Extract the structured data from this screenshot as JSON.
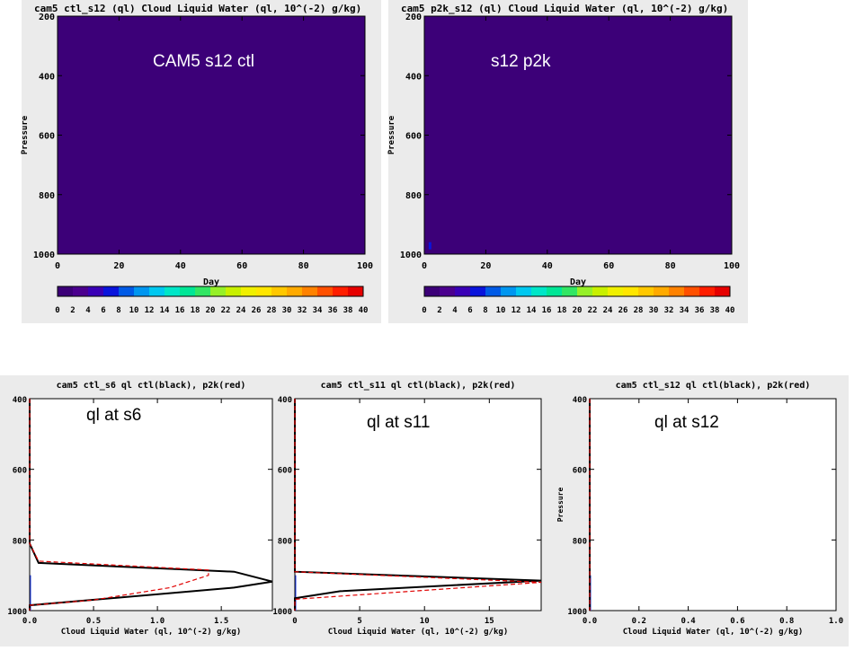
{
  "chart_data": [
    {
      "type": "heatmap",
      "title": "cam5 ctl_s12  (ql)  Cloud Liquid Water (ql, 10^(-2) g/kg)",
      "overlay_label": "CAM5 s12 ctl",
      "xlabel": "Day",
      "ylabel": "Pressure",
      "xlim": [
        0,
        100
      ],
      "ylim": [
        1000,
        200
      ],
      "x_ticks": [
        "0",
        "20",
        "40",
        "60",
        "80",
        "100"
      ],
      "y_ticks": [
        "200",
        "400",
        "600",
        "800",
        "1000"
      ],
      "field_value": 0,
      "hotspots": [],
      "colorbar": {
        "ticks": [
          "0",
          "2",
          "4",
          "6",
          "8",
          "10",
          "12",
          "14",
          "16",
          "18",
          "20",
          "22",
          "24",
          "26",
          "28",
          "30",
          "32",
          "34",
          "36",
          "38",
          "40"
        ],
        "colors": [
          "#3c0078",
          "#4b008e",
          "#3a00b6",
          "#0a14dc",
          "#005ae6",
          "#0096f0",
          "#00c8f0",
          "#00e6c8",
          "#00e696",
          "#32e664",
          "#96f028",
          "#c8f000",
          "#f0f000",
          "#ffe600",
          "#ffc800",
          "#ffaa00",
          "#ff8200",
          "#ff5000",
          "#ff1e00",
          "#e60000"
        ]
      }
    },
    {
      "type": "heatmap",
      "title": "cam5 p2k_s12  (ql)  Cloud Liquid Water (ql, 10^(-2) g/kg)",
      "overlay_label": "s12 p2k",
      "xlabel": "Day",
      "ylabel": "Pressure",
      "xlim": [
        0,
        100
      ],
      "ylim": [
        1000,
        200
      ],
      "x_ticks": [
        "0",
        "20",
        "40",
        "60",
        "80",
        "100"
      ],
      "y_ticks": [
        "200",
        "400",
        "600",
        "800",
        "1000"
      ],
      "field_value": 0,
      "hotspots": [
        {
          "day": 2,
          "pressure": 990,
          "value": 6
        }
      ],
      "colorbar": {
        "ticks": [
          "0",
          "2",
          "4",
          "6",
          "8",
          "10",
          "12",
          "14",
          "16",
          "18",
          "20",
          "22",
          "24",
          "26",
          "28",
          "30",
          "32",
          "34",
          "36",
          "38",
          "40"
        ],
        "colors": [
          "#3c0078",
          "#4b008e",
          "#3a00b6",
          "#0a14dc",
          "#005ae6",
          "#0096f0",
          "#00c8f0",
          "#00e6c8",
          "#00e696",
          "#32e664",
          "#96f028",
          "#c8f000",
          "#f0f000",
          "#ffe600",
          "#ffc800",
          "#ffaa00",
          "#ff8200",
          "#ff5000",
          "#ff1e00",
          "#e60000"
        ]
      }
    },
    {
      "type": "line",
      "title": "cam5 ctl_s6 ql ctl(black), p2k(red)",
      "overlay_label": "ql at s6",
      "xlabel": "Cloud Liquid Water (ql, 10^(-2) g/kg)",
      "ylabel": "",
      "xlim": [
        0,
        1.9
      ],
      "ylim": [
        1000,
        400
      ],
      "x_ticks": [
        "0.0",
        "0.5",
        "1.0",
        "1.5"
      ],
      "x_tick_values": [
        0,
        0.5,
        1.0,
        1.5
      ],
      "y_ticks": [
        "400",
        "600",
        "800",
        "1000"
      ],
      "y_tick_values": [
        400,
        600,
        800,
        1000
      ],
      "series": [
        {
          "name": "ctl",
          "color": "#000000",
          "dash": false,
          "x": [
            0.0,
            0.0,
            0.07,
            1.6,
            1.9,
            1.6,
            0.0,
            0.0
          ],
          "y": [
            400,
            810,
            865,
            890,
            918,
            935,
            985,
            1000
          ]
        },
        {
          "name": "p2k",
          "color": "#e00000",
          "dash": true,
          "x": [
            0.0,
            0.0,
            0.07,
            1.4,
            1.4,
            1.1,
            0.5,
            0.0,
            0.0
          ],
          "y": [
            400,
            810,
            860,
            885,
            900,
            935,
            970,
            985,
            1000
          ]
        }
      ]
    },
    {
      "type": "line",
      "title": "cam5 ctl_s11 ql ctl(black), p2k(red)",
      "overlay_label": "ql at s11",
      "xlabel": "Cloud Liquid Water (ql, 10^(-2) g/kg)",
      "ylabel": "",
      "xlim": [
        0,
        19
      ],
      "ylim": [
        1000,
        400
      ],
      "x_ticks": [
        "0",
        "5",
        "10",
        "15"
      ],
      "x_tick_values": [
        0,
        5,
        10,
        15
      ],
      "y_ticks": [
        "400",
        "600",
        "800",
        "1000"
      ],
      "y_tick_values": [
        400,
        600,
        800,
        1000
      ],
      "series": [
        {
          "name": "ctl",
          "color": "#000000",
          "dash": false,
          "x": [
            0.0,
            0.0,
            19.0,
            3.5,
            0.0,
            0.0
          ],
          "y": [
            400,
            890,
            915,
            945,
            965,
            1000
          ]
        },
        {
          "name": "p2k",
          "color": "#e00000",
          "dash": true,
          "x": [
            0.0,
            0.0,
            19.0,
            0.0,
            0.0
          ],
          "y": [
            400,
            890,
            920,
            968,
            1000
          ]
        }
      ]
    },
    {
      "type": "line",
      "title": "cam5 ctl_s12 ql ctl(black), p2k(red)",
      "overlay_label": "ql at s12",
      "xlabel": "Cloud Liquid Water (ql, 10^(-2) g/kg)",
      "ylabel": "Pressure",
      "xlim": [
        0,
        1.0
      ],
      "ylim": [
        1000,
        400
      ],
      "x_ticks": [
        "0.0",
        "0.2",
        "0.4",
        "0.6",
        "0.8",
        "1.0"
      ],
      "x_tick_values": [
        0,
        0.2,
        0.4,
        0.6,
        0.8,
        1.0
      ],
      "y_ticks": [
        "400",
        "600",
        "800",
        "1000"
      ],
      "y_tick_values": [
        400,
        600,
        800,
        1000
      ],
      "series": [
        {
          "name": "ctl",
          "color": "#000000",
          "dash": false,
          "x": [
            0.0,
            0.0
          ],
          "y": [
            400,
            1000
          ]
        },
        {
          "name": "p2k",
          "color": "#e00000",
          "dash": true,
          "x": [
            0.0,
            0.0
          ],
          "y": [
            400,
            1000
          ]
        }
      ]
    }
  ]
}
